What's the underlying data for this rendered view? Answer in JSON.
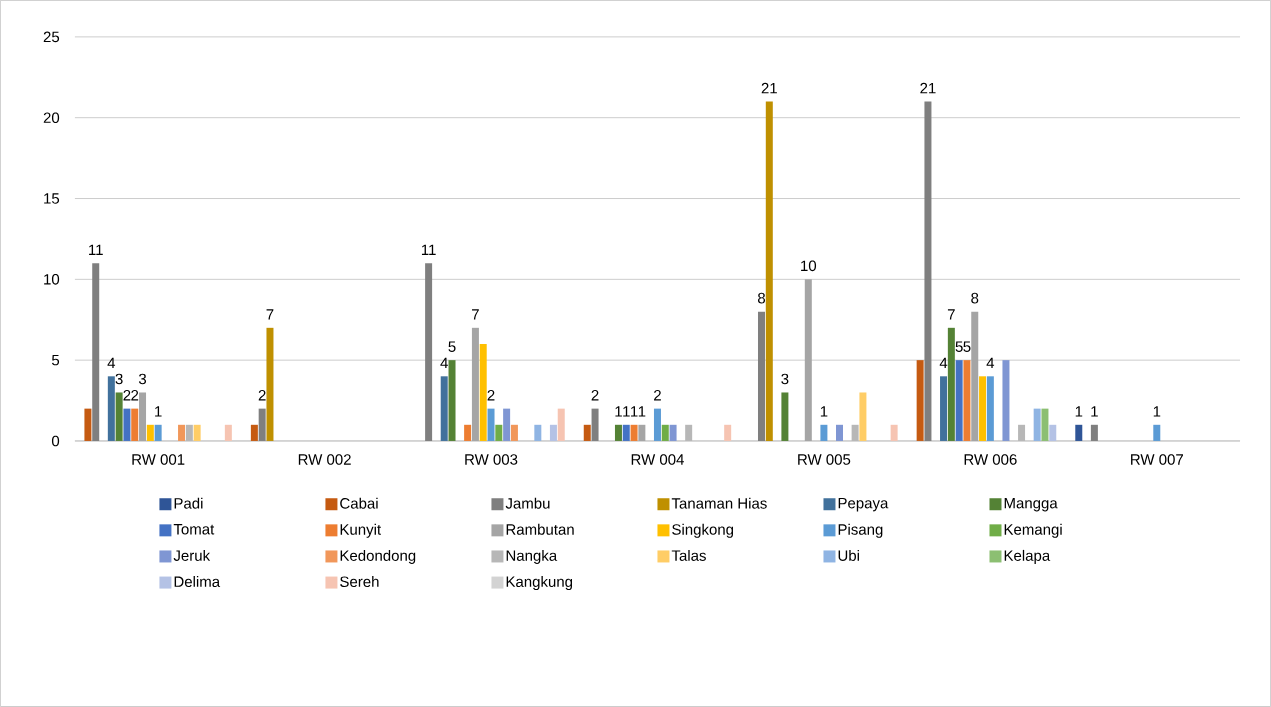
{
  "chart_data": {
    "type": "bar",
    "categories": [
      "RW 001",
      "RW 002",
      "RW 003",
      "RW 004",
      "RW 005",
      "RW 006",
      "RW 007"
    ],
    "ylim": [
      0,
      25
    ],
    "yticks": [
      0,
      5,
      10,
      15,
      20,
      25
    ],
    "grid": "y",
    "legend": "bottom",
    "series": [
      {
        "name": "Padi",
        "color": "#2f5597",
        "values": [
          0,
          0,
          0,
          0,
          0,
          0,
          1
        ],
        "value_labels": [
          null,
          null,
          null,
          null,
          null,
          null,
          "1"
        ]
      },
      {
        "name": "Cabai",
        "color": "#c55a11",
        "values": [
          2,
          1,
          0,
          1,
          0,
          5,
          0
        ]
      },
      {
        "name": "Jambu",
        "color": "#7f7f7f",
        "values": [
          11,
          2,
          11,
          2,
          8,
          21,
          1
        ],
        "value_labels": [
          "11",
          "2",
          "11",
          "2",
          "8",
          "21",
          "1"
        ]
      },
      {
        "name": "Tanaman Hias",
        "color": "#bf9000",
        "values": [
          0,
          7,
          0,
          0,
          21,
          0,
          0
        ],
        "value_labels": [
          null,
          "7",
          null,
          null,
          "21",
          null,
          null
        ]
      },
      {
        "name": "Pepaya",
        "color": "#41719c",
        "values": [
          4,
          0,
          4,
          0,
          0,
          4,
          0
        ],
        "value_labels": [
          "4",
          null,
          "4",
          null,
          null,
          "4",
          null
        ]
      },
      {
        "name": "Mangga",
        "color": "#548235",
        "values": [
          3,
          0,
          5,
          1,
          3,
          7,
          0
        ],
        "value_labels": [
          "3",
          null,
          "5",
          "1",
          "3",
          "7",
          null
        ]
      },
      {
        "name": "Tomat",
        "color": "#4472c4",
        "values": [
          2,
          0,
          0,
          1,
          0,
          5,
          0
        ],
        "value_labels": [
          "2",
          null,
          null,
          "1",
          null,
          "5",
          null
        ]
      },
      {
        "name": "Kunyit",
        "color": "#ed7d31",
        "values": [
          2,
          0,
          1,
          1,
          0,
          5,
          0
        ],
        "value_labels": [
          "2",
          null,
          null,
          "1",
          null,
          "5",
          null
        ]
      },
      {
        "name": "Rambutan",
        "color": "#a5a5a5",
        "values": [
          3,
          0,
          7,
          1,
          10,
          8,
          0
        ],
        "value_labels": [
          "3",
          null,
          "7",
          "1",
          "10",
          "8",
          null
        ]
      },
      {
        "name": "Singkong",
        "color": "#ffc000",
        "values": [
          1,
          0,
          6,
          0,
          0,
          4,
          0
        ]
      },
      {
        "name": "Pisang",
        "color": "#5b9bd5",
        "values": [
          1,
          0,
          2,
          2,
          1,
          4,
          1
        ],
        "value_labels": [
          "1",
          null,
          "2",
          "2",
          "1",
          "4",
          "1"
        ]
      },
      {
        "name": "Kemangi",
        "color": "#70ad47",
        "values": [
          0,
          0,
          1,
          1,
          0,
          0,
          0
        ]
      },
      {
        "name": "Jeruk",
        "color": "#7f96d3",
        "values": [
          0,
          0,
          2,
          1,
          1,
          5,
          0
        ]
      },
      {
        "name": "Kedondong",
        "color": "#f1975a",
        "values": [
          1,
          0,
          1,
          0,
          0,
          0,
          0
        ]
      },
      {
        "name": "Nangka",
        "color": "#b7b7b7",
        "values": [
          1,
          0,
          0,
          1,
          1,
          1,
          0
        ]
      },
      {
        "name": "Talas",
        "color": "#ffcd66",
        "values": [
          1,
          0,
          0,
          0,
          3,
          0,
          0
        ]
      },
      {
        "name": "Ubi",
        "color": "#8fb4e3",
        "values": [
          0,
          0,
          1,
          0,
          0,
          2,
          0
        ]
      },
      {
        "name": "Kelapa",
        "color": "#8cbf72",
        "values": [
          0,
          0,
          0,
          0,
          0,
          2,
          0
        ]
      },
      {
        "name": "Delima",
        "color": "#b4c2e5",
        "values": [
          0,
          0,
          1,
          0,
          0,
          1,
          0
        ]
      },
      {
        "name": "Sereh",
        "color": "#f6c4b2",
        "values": [
          1,
          0,
          2,
          1,
          1,
          0,
          0
        ]
      },
      {
        "name": "Kangkung",
        "color": "#d3d3d3",
        "values": [
          0,
          0,
          0,
          0,
          0,
          0,
          0
        ]
      }
    ]
  }
}
